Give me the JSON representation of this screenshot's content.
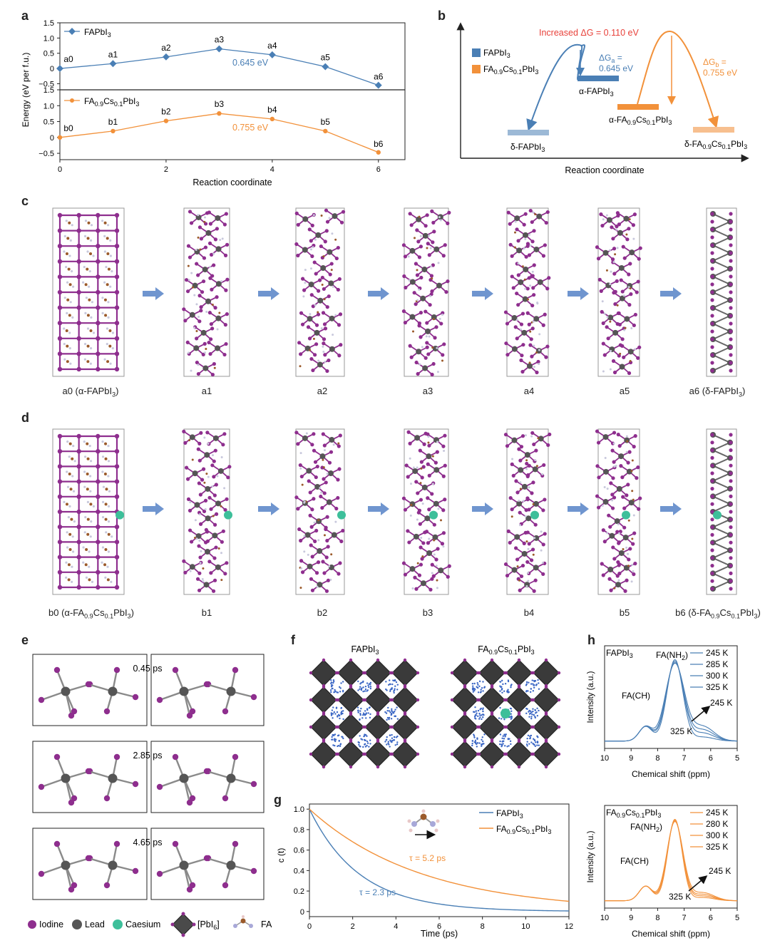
{
  "panels": {
    "a": "a",
    "b": "b",
    "c": "c",
    "d": "d",
    "e": "e",
    "f": "f",
    "g": "g",
    "h": "h"
  },
  "colors": {
    "blue": "#4a7fb5",
    "orange": "#f2913a",
    "iodine": "#8e2e8e",
    "lead": "#555555",
    "caesium": "#3dbf9a",
    "red": "#e8413a",
    "arrow": "#6f95cf"
  },
  "panel_a": {
    "ylabel": "Energy (eV per f.u.)",
    "xlabel": "Reaction coordinate",
    "x_ticks": [
      "0",
      "2",
      "4",
      "6"
    ],
    "top": {
      "legend": "FAPbI3",
      "y_ticks": [
        "1.5",
        "1.0",
        "0.5",
        "0",
        "−0.5"
      ],
      "point_labels": [
        "a0",
        "a1",
        "a2",
        "a3",
        "a4",
        "a5",
        "a6"
      ],
      "annotation": "0.645 eV"
    },
    "bottom": {
      "legend": "FA0.9Cs0.1PbI3",
      "y_ticks": [
        "1.5",
        "1.0",
        "0.5",
        "0",
        "−0.5"
      ],
      "point_labels": [
        "b0",
        "b1",
        "b2",
        "b3",
        "b4",
        "b5",
        "b6"
      ],
      "annotation": "0.755 eV"
    }
  },
  "chart_data": [
    {
      "type": "line",
      "xlabel": "Reaction coordinate",
      "ylabel": "Energy (eV per f.u.)",
      "ylim": [
        -0.7,
        1.5
      ],
      "x": [
        0,
        1,
        2,
        3,
        4,
        5,
        6
      ],
      "series": [
        {
          "name": "FAPbI3",
          "values": [
            0.0,
            0.16,
            0.38,
            0.645,
            0.45,
            0.06,
            -0.55
          ]
        }
      ]
    },
    {
      "type": "line",
      "xlabel": "Reaction coordinate",
      "ylabel": "Energy (eV per f.u.)",
      "ylim": [
        -0.7,
        1.5
      ],
      "x": [
        0,
        1,
        2,
        3,
        4,
        5,
        6
      ],
      "series": [
        {
          "name": "FA0.9Cs0.1PbI3",
          "values": [
            0.0,
            0.2,
            0.52,
            0.755,
            0.58,
            0.2,
            -0.47
          ]
        }
      ]
    },
    {
      "type": "line",
      "xlabel": "Time (ps)",
      "ylabel": "c (t)",
      "xlim": [
        0,
        12
      ],
      "ylim": [
        -0.05,
        1.05
      ],
      "x_ticks": [
        0,
        2,
        4,
        6,
        8,
        10,
        12
      ],
      "y_ticks": [
        0,
        0.2,
        0.4,
        0.6,
        0.8,
        1.0
      ],
      "series": [
        {
          "name": "FAPbI3",
          "tau": 2.3
        },
        {
          "name": "FA0.9Cs0.1PbI3",
          "tau": 5.2
        }
      ]
    }
  ],
  "panel_b": {
    "xlabel": "Reaction coordinate",
    "legend_fapbi3": "FAPbI3",
    "legend_facs": "FA0.9Cs0.1PbI3",
    "increased": "Increased ΔG = 0.110 eV",
    "dga": "ΔGa =",
    "dga_val": "0.645 eV",
    "dgb": "ΔGb =",
    "dgb_val": "0.755 eV",
    "alpha_fa": "α-FAPbI3",
    "delta_fa": "δ-FAPbI3",
    "alpha_facs": "α-FA0.9Cs0.1PbI3",
    "delta_facs": "δ-FA0.9Cs0.1PbI3"
  },
  "panel_c": {
    "captions": [
      "a0 (α-FAPbI3)",
      "a1",
      "a2",
      "a3",
      "a4",
      "a5",
      "a6 (δ-FAPbI3)"
    ]
  },
  "panel_d": {
    "captions": [
      "b0 (α-FA0.9Cs0.1PbI3)",
      "b1",
      "b2",
      "b3",
      "b4",
      "b5",
      "b6 (δ-FA0.9Cs0.1PbI3)"
    ]
  },
  "panel_e": {
    "times": [
      "0.45 ps",
      "2.85 ps",
      "4.65 ps"
    ],
    "legend": {
      "iodine": "Iodine",
      "lead": "Lead",
      "caesium": "Caesium",
      "pbi6": "[PbI6]",
      "fa": "FA"
    }
  },
  "panel_f": {
    "left_title": "FAPbI3",
    "right_title": "FA0.9Cs0.1PbI3"
  },
  "panel_g": {
    "ylabel": "c (t)",
    "xlabel": "Time (ps)",
    "x_ticks": [
      "0",
      "2",
      "4",
      "6",
      "8",
      "10",
      "12"
    ],
    "y_ticks": [
      "1.0",
      "0.8",
      "0.6",
      "0.4",
      "0.2",
      "0"
    ],
    "legend_1": "FAPbI3",
    "legend_2": "FA0.9Cs0.1PbI3",
    "tau_1": "τ = 2.3 ps",
    "tau_2": "τ = 5.2 ps"
  },
  "panel_h": {
    "ylabel": "Intensity (a.u.)",
    "xlabel": "Chemical shift (ppm)",
    "x_ticks": [
      "10",
      "9",
      "8",
      "7",
      "6",
      "5"
    ],
    "top": {
      "title": "FAPbI3",
      "peak_nh2": "FA(NH2)",
      "peak_ch": "FA(CH)",
      "temps": [
        "245 K",
        "285 K",
        "300 K",
        "325 K"
      ],
      "arrow_hi": "245 K",
      "arrow_lo": "325 K"
    },
    "bottom": {
      "title": "FA0.9Cs0.1PbI3",
      "peak_nh2": "FA(NH2)",
      "peak_ch": "FA(CH)",
      "temps": [
        "245 K",
        "280 K",
        "300 K",
        "325 K"
      ],
      "arrow_hi": "245 K",
      "arrow_lo": "325 K"
    }
  }
}
